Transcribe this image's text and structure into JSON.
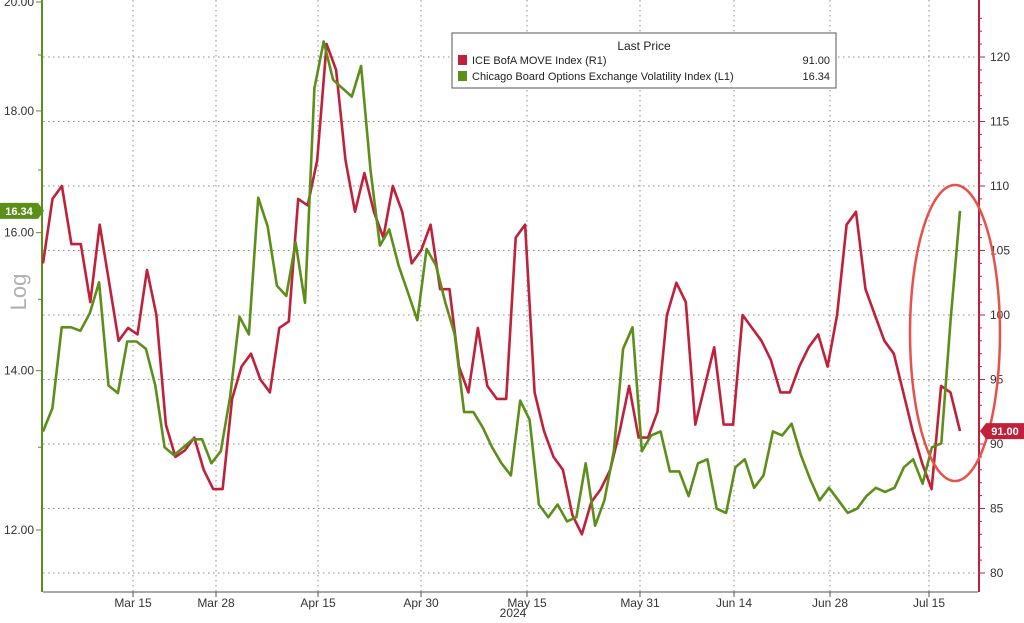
{
  "chart_data": {
    "type": "line",
    "y_scale_label": "Log",
    "year_label": "2024",
    "x_ticks": [
      "Mar 15",
      "Mar 28",
      "Apr 15",
      "Apr 30",
      "May 15",
      "May 31",
      "Jun 14",
      "Jun 28",
      "Jul 15"
    ],
    "left_axis": {
      "ticks": [
        "12.00",
        "14.00",
        "16.00",
        "18.00",
        "20.00"
      ],
      "ylim": [
        11.5,
        20.0
      ],
      "scale": "log"
    },
    "right_axis": {
      "ticks": [
        "80",
        "85",
        "90",
        "95",
        "100",
        "105",
        "110",
        "115",
        "120"
      ],
      "ylim": [
        79.5,
        124.0
      ]
    },
    "legend": {
      "title": "Last Price",
      "entries": [
        {
          "label": "ICE BofA MOVE Index  (R1)",
          "value": "91.00",
          "color": "#c0203a"
        },
        {
          "label": "Chicago Board Options Exchange Volatility Index  (L1)",
          "value": "16.34",
          "color": "#5c8f1a"
        }
      ]
    },
    "series": [
      {
        "name": "ICE BofA MOVE Index  (R1)",
        "axis": "right",
        "color": "#c0203a",
        "last_label": "91.00",
        "values": [
          104,
          109,
          110,
          105.5,
          105.5,
          101,
          107,
          102.5,
          98,
          99,
          98.5,
          103.5,
          100,
          91.5,
          89,
          89.5,
          90.5,
          88,
          86.5,
          86.5,
          93.5,
          96,
          97,
          95,
          94,
          99,
          99.5,
          109,
          108.5,
          112,
          121,
          119,
          112,
          108,
          111,
          108,
          106,
          110,
          108,
          104,
          105,
          107,
          102,
          102,
          96,
          94,
          99,
          94.5,
          93.5,
          93.5,
          106,
          107,
          94,
          91,
          89,
          88,
          84.5,
          83,
          85.5,
          86.5,
          88,
          91,
          94.5,
          90.5,
          90.5,
          92.5,
          100,
          102.5,
          101,
          91.5,
          94.5,
          97.5,
          91.5,
          91.5,
          100,
          99,
          98,
          96.5,
          94,
          94,
          96,
          97.5,
          98.5,
          96,
          100,
          107,
          108,
          102,
          100,
          98,
          97,
          94,
          91,
          88.5,
          86.5,
          94.5,
          94,
          91
        ]
      },
      {
        "name": "Chicago Board Options Exchange Volatility Index  (L1)",
        "axis": "left",
        "color": "#5c8f1a",
        "last_label": "16.34",
        "values": [
          13.2,
          13.5,
          14.6,
          14.6,
          14.55,
          14.8,
          15.25,
          13.8,
          13.7,
          14.4,
          14.4,
          14.3,
          13.8,
          13.0,
          12.9,
          13.0,
          13.1,
          13.1,
          12.8,
          12.95,
          13.65,
          14.75,
          14.5,
          16.55,
          16.1,
          15.2,
          15.05,
          15.85,
          14.95,
          18.4,
          19.25,
          18.55,
          18.4,
          18.25,
          18.8,
          17.0,
          15.8,
          16.05,
          15.5,
          15.1,
          14.7,
          15.75,
          15.5,
          14.95,
          14.5,
          13.45,
          13.45,
          13.25,
          13.0,
          12.8,
          12.65,
          13.6,
          13.35,
          12.3,
          12.15,
          12.3,
          12.1,
          12.15,
          12.8,
          12.05,
          12.35,
          12.95,
          14.3,
          14.6,
          12.95,
          13.15,
          13.2,
          12.7,
          12.7,
          12.4,
          12.8,
          12.85,
          12.25,
          12.2,
          12.75,
          12.85,
          12.5,
          12.65,
          13.2,
          13.15,
          13.3,
          12.9,
          12.6,
          12.35,
          12.5,
          12.35,
          12.2,
          12.25,
          12.4,
          12.5,
          12.45,
          12.5,
          12.75,
          12.85,
          12.55,
          13.0,
          13.05,
          14.7,
          16.34
        ]
      }
    ]
  },
  "colors": {
    "left_axis_bar": "#5c8f1a",
    "right_axis_bar": "#c0203a",
    "grid": "#8a8a8a",
    "highlight_ellipse": "#e8504a"
  }
}
